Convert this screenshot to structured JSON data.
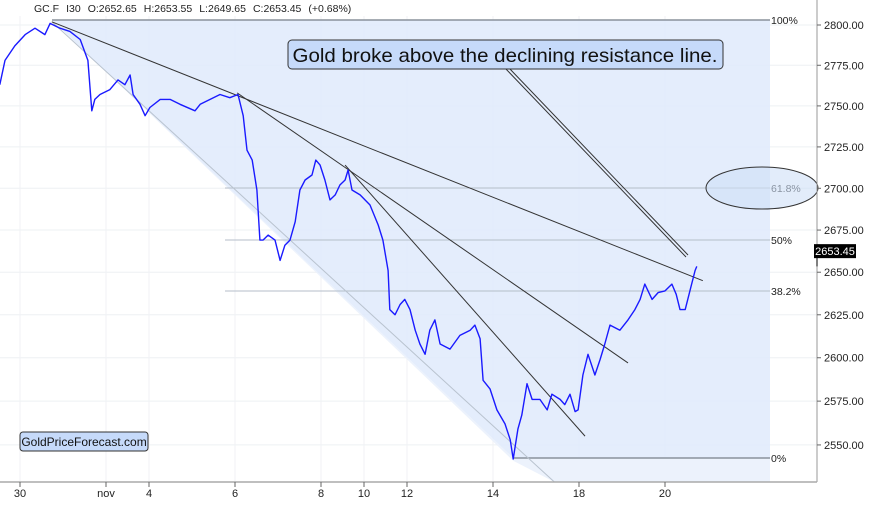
{
  "header": {
    "symbol": "GC.F",
    "interval": "I30",
    "open": "O:2652.65",
    "high": "H:2653.55",
    "low": "L:2649.65",
    "close": "C:2653.45",
    "change": "(+0.68%)"
  },
  "watermark": "GoldPriceForecast.com",
  "annotation": "Gold broke above the declining resistance line.",
  "last_price_label": "2653.45",
  "colors": {
    "price": "#1a1aff",
    "fill": "#dce9fb",
    "trendline": "#333333",
    "fib_line": "#8a929c"
  },
  "chart_data": {
    "type": "line",
    "y_scale": "log",
    "ylim": [
      2530,
      2812
    ],
    "grid": true,
    "y_ticks": [
      "2550.00",
      "2575.00",
      "2600.00",
      "2625.00",
      "2650.00",
      "2675.00",
      "2700.00",
      "2725.00",
      "2750.00",
      "2775.00",
      "2800.00"
    ],
    "x_ticks": [
      {
        "label": "30",
        "session": 0
      },
      {
        "label": "nov",
        "session": 2
      },
      {
        "label": "4",
        "session": 3
      },
      {
        "label": "6",
        "session": 5
      },
      {
        "label": "8",
        "session": 7
      },
      {
        "label": "10",
        "session": 8
      },
      {
        "label": "12",
        "session": 9
      },
      {
        "label": "14",
        "session": 11
      },
      {
        "label": "18",
        "session": 13
      },
      {
        "label": "20",
        "session": 15
      }
    ],
    "series": [
      {
        "points": [
          [
            -0.47,
            2763
          ],
          [
            -0.35,
            2778
          ],
          [
            -0.12,
            2787
          ],
          [
            0.12,
            2794
          ],
          [
            0.35,
            2798
          ],
          [
            0.58,
            2794
          ],
          [
            0.7,
            2801
          ],
          [
            0.93,
            2798
          ],
          [
            1.16,
            2796
          ],
          [
            1.4,
            2791
          ],
          [
            1.58,
            2778
          ],
          [
            1.67,
            2747
          ],
          [
            1.74,
            2754
          ],
          [
            1.86,
            2757
          ],
          [
            2.09,
            2760
          ],
          [
            2.28,
            2766
          ],
          [
            2.44,
            2763
          ],
          [
            2.56,
            2769
          ],
          [
            2.63,
            2757
          ],
          [
            2.79,
            2751
          ],
          [
            2.91,
            2744
          ],
          [
            3.02,
            2749
          ],
          [
            3.26,
            2754
          ],
          [
            3.49,
            2754
          ],
          [
            3.72,
            2751
          ],
          [
            4.07,
            2747
          ],
          [
            4.19,
            2751
          ],
          [
            4.42,
            2754
          ],
          [
            4.65,
            2757
          ],
          [
            4.88,
            2755
          ],
          [
            5.07,
            2757
          ],
          [
            5.19,
            2744
          ],
          [
            5.28,
            2723
          ],
          [
            5.4,
            2717
          ],
          [
            5.51,
            2699
          ],
          [
            5.58,
            2669
          ],
          [
            5.65,
            2669
          ],
          [
            5.77,
            2672
          ],
          [
            5.93,
            2669
          ],
          [
            6.05,
            2657
          ],
          [
            6.16,
            2666
          ],
          [
            6.28,
            2669
          ],
          [
            6.4,
            2680
          ],
          [
            6.51,
            2699
          ],
          [
            6.63,
            2705
          ],
          [
            6.79,
            2708
          ],
          [
            6.88,
            2717
          ],
          [
            6.98,
            2714
          ],
          [
            7.09,
            2705
          ],
          [
            7.21,
            2693
          ],
          [
            7.33,
            2696
          ],
          [
            7.44,
            2702
          ],
          [
            7.56,
            2705
          ],
          [
            7.63,
            2711
          ],
          [
            7.72,
            2699
          ],
          [
            7.91,
            2696
          ],
          [
            8.14,
            2690
          ],
          [
            8.33,
            2678
          ],
          [
            8.44,
            2669
          ],
          [
            8.56,
            2651
          ],
          [
            8.6,
            2628
          ],
          [
            8.72,
            2625
          ],
          [
            8.84,
            2631
          ],
          [
            8.95,
            2634
          ],
          [
            9.07,
            2628
          ],
          [
            9.19,
            2616
          ],
          [
            9.3,
            2608
          ],
          [
            9.42,
            2602
          ],
          [
            9.53,
            2616
          ],
          [
            9.65,
            2622
          ],
          [
            9.77,
            2608
          ],
          [
            10.0,
            2605
          ],
          [
            10.23,
            2613
          ],
          [
            10.47,
            2616
          ],
          [
            10.58,
            2619
          ],
          [
            10.7,
            2611
          ],
          [
            10.77,
            2587
          ],
          [
            10.93,
            2582
          ],
          [
            11.09,
            2570
          ],
          [
            11.28,
            2562
          ],
          [
            11.4,
            2553
          ],
          [
            11.47,
            2542
          ],
          [
            11.58,
            2559
          ],
          [
            11.67,
            2567
          ],
          [
            11.79,
            2585
          ],
          [
            11.91,
            2576
          ],
          [
            12.09,
            2576
          ],
          [
            12.26,
            2570
          ],
          [
            12.37,
            2579
          ],
          [
            12.56,
            2576
          ],
          [
            12.67,
            2573
          ],
          [
            12.79,
            2579
          ],
          [
            12.91,
            2569
          ],
          [
            12.98,
            2570
          ],
          [
            13.09,
            2590
          ],
          [
            13.21,
            2602
          ],
          [
            13.37,
            2590
          ],
          [
            13.49,
            2599
          ],
          [
            13.6,
            2608
          ],
          [
            13.72,
            2619
          ],
          [
            13.95,
            2616
          ],
          [
            14.14,
            2622
          ],
          [
            14.3,
            2628
          ],
          [
            14.42,
            2634
          ],
          [
            14.53,
            2643
          ],
          [
            14.7,
            2634
          ],
          [
            14.84,
            2638
          ],
          [
            15.0,
            2639
          ],
          [
            15.16,
            2643
          ],
          [
            15.26,
            2637
          ],
          [
            15.35,
            2628
          ],
          [
            15.47,
            2628
          ],
          [
            15.58,
            2639
          ],
          [
            15.7,
            2651
          ],
          [
            15.74,
            2653.45
          ]
        ]
      }
    ],
    "fibonacci": {
      "high": 2801,
      "low": 2542,
      "levels": [
        {
          "label": "100%",
          "ratio": 1
        },
        {
          "label": "61.8%",
          "ratio": 0.618
        },
        {
          "label": "50%",
          "ratio": 0.5
        },
        {
          "label": "38.2%",
          "ratio": 0.382
        },
        {
          "label": "0%",
          "ratio": 0
        }
      ]
    },
    "trendlines": [
      {
        "from": [
          0.74,
          2802
        ],
        "to": [
          15.88,
          2645
        ]
      },
      {
        "from": [
          5.05,
          2758
        ],
        "to": [
          14.14,
          2597
        ]
      },
      {
        "from": [
          7.56,
          2714
        ],
        "to": [
          13.14,
          2555
        ]
      }
    ],
    "channel_line": {
      "from": [
        0.74,
        2802
      ],
      "to": [
        11.47,
        2541
      ]
    },
    "highlight_ellipse_level": "61.8%"
  }
}
